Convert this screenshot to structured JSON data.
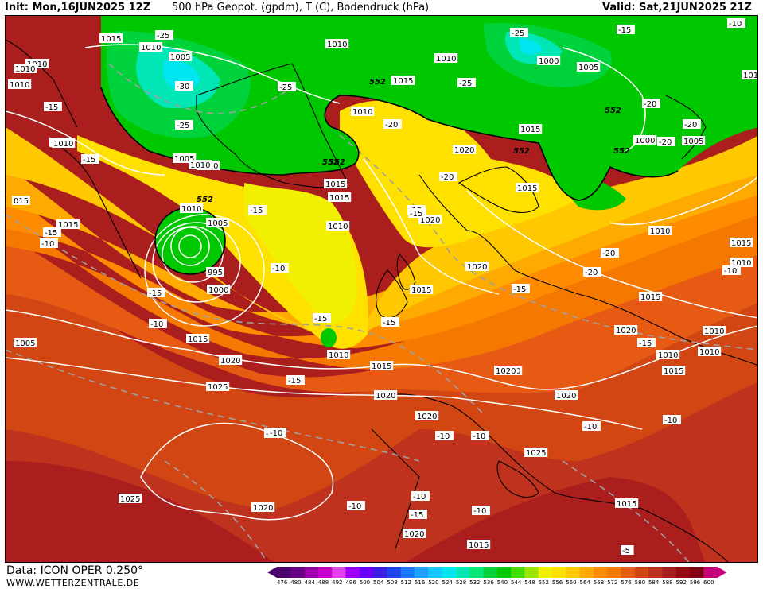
{
  "header": {
    "init": "Init: Mon,16JUN2025 12Z",
    "title": "500 hPa Geopot. (gpdm), T (C), Bodendruck (hPa)",
    "valid": "Valid: Sat,21JUN2025 21Z"
  },
  "footer": {
    "data": "Data: ICON OPER 0.250°",
    "site": "WWW.WETTERZENTRALE.DE"
  },
  "legend": {
    "unit": "gpdm",
    "levels": [
      "476",
      "480",
      "484",
      "488",
      "492",
      "496",
      "500",
      "504",
      "508",
      "512",
      "516",
      "520",
      "524",
      "528",
      "532",
      "536",
      "540",
      "544",
      "548",
      "552",
      "556",
      "560",
      "564",
      "568",
      "572",
      "576",
      "580",
      "584",
      "588",
      "592",
      "596",
      "600"
    ],
    "colors": [
      "#4b006e",
      "#6a0086",
      "#9a00a8",
      "#c800c8",
      "#e040e8",
      "#a000ff",
      "#6a00ff",
      "#3c1ee6",
      "#1e46f0",
      "#1e78ff",
      "#1ea0ff",
      "#14c8ff",
      "#00e6f0",
      "#00e6b4",
      "#00e678",
      "#00d23c",
      "#00c800",
      "#46dc00",
      "#96e600",
      "#f0f000",
      "#ffe100",
      "#ffc800",
      "#ffaa00",
      "#ff8c00",
      "#f57800",
      "#e65a14",
      "#d24614",
      "#be321e",
      "#aa1e1e",
      "#960a14",
      "#820014",
      "#c8007a"
    ]
  },
  "map_labels": {
    "pressure": [
      {
        "text": "1015"
      },
      {
        "text": "1010"
      },
      {
        "text": "1005"
      },
      {
        "text": "1010"
      },
      {
        "text": "1010"
      },
      {
        "text": "1015"
      },
      {
        "text": "1010"
      },
      {
        "text": "1000"
      },
      {
        "text": "1005"
      },
      {
        "text": "1010"
      },
      {
        "text": "1010"
      },
      {
        "text": "1005"
      },
      {
        "text": "1010"
      },
      {
        "text": "1015"
      },
      {
        "text": "1010"
      },
      {
        "text": "1015"
      },
      {
        "text": "1020"
      },
      {
        "text": "1000"
      },
      {
        "text": "1005"
      },
      {
        "text": "1010"
      },
      {
        "text": "1015"
      },
      {
        "text": "1015"
      },
      {
        "text": "1010"
      },
      {
        "text": "1010"
      },
      {
        "text": "1005"
      },
      {
        "text": "995"
      },
      {
        "text": "1000"
      },
      {
        "text": "1015"
      },
      {
        "text": "1010"
      },
      {
        "text": "1020"
      },
      {
        "text": "1020"
      },
      {
        "text": "1015"
      },
      {
        "text": "1010"
      },
      {
        "text": "1015"
      },
      {
        "text": "1020"
      },
      {
        "text": "1020"
      },
      {
        "text": "1015"
      },
      {
        "text": "1020"
      },
      {
        "text": "1010"
      },
      {
        "text": "1020"
      },
      {
        "text": "1025"
      },
      {
        "text": "1020"
      },
      {
        "text": "1020"
      },
      {
        "text": "1020"
      },
      {
        "text": "1025"
      },
      {
        "text": "1025"
      },
      {
        "text": "1020"
      },
      {
        "text": "1015"
      },
      {
        "text": "1015"
      },
      {
        "text": "1020"
      },
      {
        "text": "1010"
      },
      {
        "text": "1015"
      },
      {
        "text": "1015"
      },
      {
        "text": "015"
      },
      {
        "text": "1010"
      },
      {
        "text": "1010"
      },
      {
        "text": "1010"
      },
      {
        "text": "1015"
      },
      {
        "text": "1010"
      },
      {
        "text": "1005"
      },
      {
        "text": "1010"
      }
    ],
    "temperature": [
      {
        "text": "-25"
      },
      {
        "text": "-30"
      },
      {
        "text": "-25"
      },
      {
        "text": "-25"
      },
      {
        "text": "-25"
      },
      {
        "text": "-20"
      },
      {
        "text": "-25"
      },
      {
        "text": "-20"
      },
      {
        "text": "-20"
      },
      {
        "text": "-20"
      },
      {
        "text": "-15"
      },
      {
        "text": "-20"
      },
      {
        "text": "-15"
      },
      {
        "text": "-15"
      },
      {
        "text": "-15"
      },
      {
        "text": "-15"
      },
      {
        "text": "-10"
      },
      {
        "text": "-10"
      },
      {
        "text": "-15"
      },
      {
        "text": "-15"
      },
      {
        "text": "-10"
      },
      {
        "text": "-15"
      },
      {
        "text": "-10"
      },
      {
        "text": "-10"
      },
      {
        "text": "-15"
      },
      {
        "text": "-20"
      },
      {
        "text": "-20"
      },
      {
        "text": "-10"
      },
      {
        "text": "-10"
      },
      {
        "text": "-10"
      },
      {
        "text": "-15"
      },
      {
        "text": "-15"
      },
      {
        "text": "-15"
      },
      {
        "text": "-10"
      },
      {
        "text": "-10"
      },
      {
        "text": "-5"
      },
      {
        "text": "-15"
      },
      {
        "text": "-10"
      },
      {
        "text": "-10"
      },
      {
        "text": "-15"
      },
      {
        "text": "-10"
      },
      {
        "text": "-10"
      }
    ],
    "geopotential": [
      {
        "text": "552"
      },
      {
        "text": "552"
      },
      {
        "text": "552"
      },
      {
        "text": "552"
      },
      {
        "text": "552"
      },
      {
        "text": "552"
      },
      {
        "text": "552"
      }
    ]
  }
}
